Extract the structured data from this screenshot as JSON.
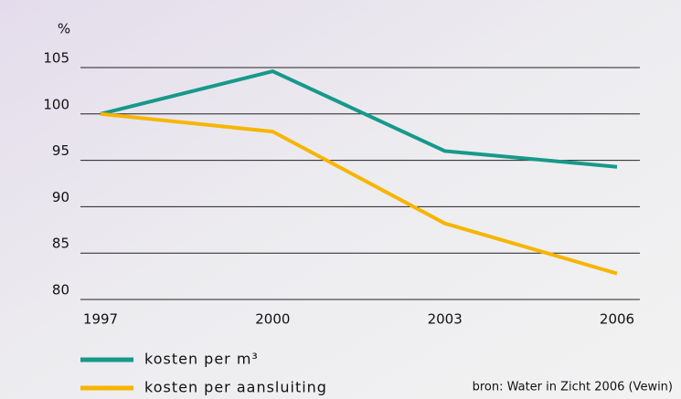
{
  "chart_data": {
    "type": "line",
    "y_label": "%",
    "x": [
      1997,
      2000,
      2003,
      2006
    ],
    "xlim": [
      1997,
      2006
    ],
    "xticks": [
      1997,
      2000,
      2003,
      2006
    ],
    "ylim": [
      80,
      105
    ],
    "yticks": [
      80,
      85,
      90,
      95,
      100,
      105
    ],
    "grid": true,
    "series": [
      {
        "name": "kosten per m³",
        "color": "#16998a",
        "values": [
          100,
          104.6,
          96.0,
          94.3
        ]
      },
      {
        "name": "kosten per aansluiting",
        "color": "#f7b500",
        "values": [
          100,
          98.1,
          88.2,
          82.8
        ]
      }
    ],
    "source": "bron: Water in Zicht 2006 (Vewin)"
  }
}
